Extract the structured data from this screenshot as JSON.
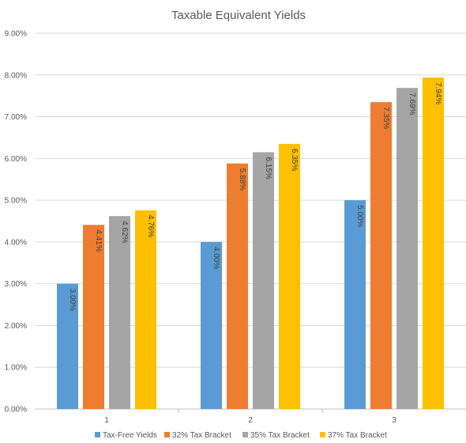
{
  "chart_data": {
    "type": "bar",
    "title": "Taxable Equivalent Yields",
    "xlabel": "",
    "ylabel": "",
    "categories": [
      "1",
      "2",
      "3"
    ],
    "ylim": [
      0,
      9
    ],
    "y_ticks": [
      "0.00%",
      "1.00%",
      "2.00%",
      "3.00%",
      "4.00%",
      "5.00%",
      "6.00%",
      "7.00%",
      "8.00%",
      "9.00%"
    ],
    "grid": "horizontal",
    "legend_position": "bottom",
    "series": [
      {
        "name": "Tax-Free Yields",
        "color": "#5b9bd5",
        "values": [
          3.0,
          4.0,
          5.0
        ],
        "labels": [
          "3.00%",
          "4.00%",
          "5.00%"
        ]
      },
      {
        "name": "32% Tax Bracket",
        "color": "#ed7d31",
        "values": [
          4.41,
          5.88,
          7.35
        ],
        "labels": [
          "4.41%",
          "5.88%",
          "7.35%"
        ]
      },
      {
        "name": "35% Tax Bracket",
        "color": "#a5a5a5",
        "values": [
          4.62,
          6.15,
          7.69
        ],
        "labels": [
          "4.62%",
          "6.15%",
          "7.69%"
        ]
      },
      {
        "name": "37% Tax Bracket",
        "color": "#ffc000",
        "values": [
          4.76,
          6.35,
          7.94
        ],
        "labels": [
          "4.76%",
          "6.35%",
          "7.94%"
        ]
      }
    ]
  }
}
